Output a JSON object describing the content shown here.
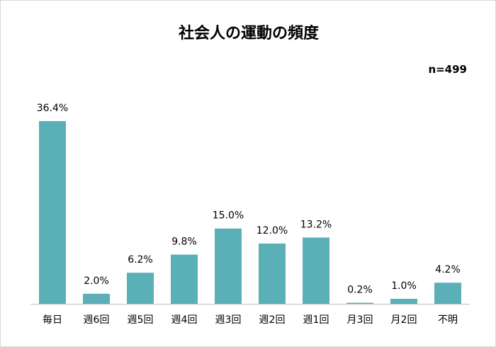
{
  "chart_data": {
    "type": "bar",
    "title": "社会人の運動の頻度",
    "note": "n=499",
    "categories": [
      "毎日",
      "週6回",
      "週5回",
      "週4回",
      "週3回",
      "週2回",
      "週1回",
      "月3回",
      "月2回",
      "不明"
    ],
    "values": [
      36.4,
      2.0,
      6.2,
      9.8,
      15.0,
      12.0,
      13.2,
      0.2,
      1.0,
      4.2
    ],
    "value_labels": [
      "36.4%",
      "2.0%",
      "6.2%",
      "9.8%",
      "15.0%",
      "12.0%",
      "13.2%",
      "0.2%",
      "1.0%",
      "4.2%"
    ],
    "ylim": [
      0,
      40
    ],
    "bar_color": "#5BB0B7",
    "axis_color": "#bfbfbf",
    "grid": false,
    "legend": "none"
  }
}
